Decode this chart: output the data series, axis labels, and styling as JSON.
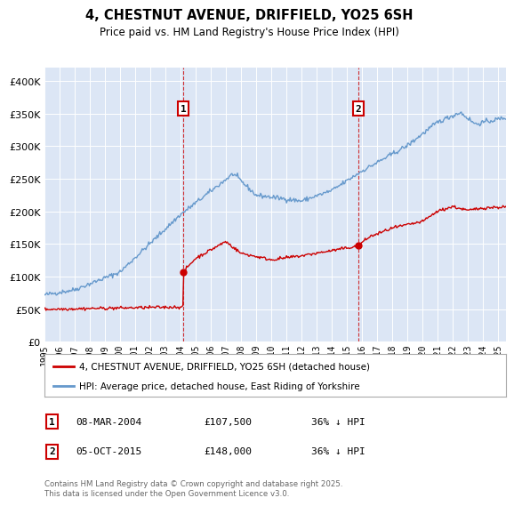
{
  "title": "4, CHESTNUT AVENUE, DRIFFIELD, YO25 6SH",
  "subtitle": "Price paid vs. HM Land Registry's House Price Index (HPI)",
  "red_label": "4, CHESTNUT AVENUE, DRIFFIELD, YO25 6SH (detached house)",
  "blue_label": "HPI: Average price, detached house, East Riding of Yorkshire",
  "annotation1_date": "08-MAR-2004",
  "annotation1_price": "£107,500",
  "annotation1_hpi": "36% ↓ HPI",
  "annotation2_date": "05-OCT-2015",
  "annotation2_price": "£148,000",
  "annotation2_hpi": "36% ↓ HPI",
  "footer": "Contains HM Land Registry data © Crown copyright and database right 2025.\nThis data is licensed under the Open Government Licence v3.0.",
  "red_color": "#cc0000",
  "blue_color": "#6699cc",
  "annotation_color": "#cc0000",
  "background_color": "#ffffff",
  "plot_bg_color": "#dce6f5",
  "ylim": [
    0,
    420000
  ],
  "yticks": [
    0,
    50000,
    100000,
    150000,
    200000,
    250000,
    300000,
    350000,
    400000
  ],
  "purchase1_year": 2004.18,
  "purchase1_price": 107500,
  "purchase2_year": 2015.76,
  "purchase2_price": 148000,
  "xmin": 1995,
  "xmax": 2025.5
}
